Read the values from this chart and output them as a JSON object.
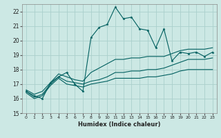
{
  "xlabel": "Humidex (Indice chaleur)",
  "bg_color": "#cce8e4",
  "grid_color": "#aacfcc",
  "line_color": "#005f5f",
  "x_humidex": [
    0,
    1,
    2,
    3,
    4,
    5,
    6,
    7,
    8,
    9,
    10,
    11,
    12,
    13,
    14,
    15,
    16,
    17,
    18,
    19,
    20,
    21,
    22,
    23
  ],
  "series1": [
    16.5,
    16.2,
    16.0,
    17.1,
    17.5,
    17.8,
    17.0,
    16.5,
    20.2,
    20.9,
    21.1,
    22.3,
    21.5,
    21.6,
    20.8,
    20.7,
    19.5,
    20.8,
    18.6,
    19.2,
    19.1,
    19.2,
    18.9,
    19.2
  ],
  "series2": [
    16.6,
    16.3,
    16.5,
    17.1,
    17.7,
    17.5,
    17.3,
    17.2,
    17.8,
    18.1,
    18.4,
    18.7,
    18.7,
    18.8,
    18.8,
    18.9,
    18.9,
    18.9,
    19.1,
    19.3,
    19.4,
    19.4,
    19.4,
    19.5
  ],
  "series3": [
    16.5,
    16.1,
    16.3,
    17.0,
    17.5,
    17.2,
    17.1,
    17.0,
    17.2,
    17.3,
    17.5,
    17.8,
    17.8,
    17.9,
    17.9,
    18.0,
    18.0,
    18.1,
    18.3,
    18.5,
    18.7,
    18.7,
    18.7,
    18.8
  ],
  "series4": [
    16.4,
    16.0,
    16.2,
    16.9,
    17.4,
    17.0,
    16.9,
    16.8,
    17.0,
    17.1,
    17.2,
    17.4,
    17.4,
    17.4,
    17.4,
    17.5,
    17.5,
    17.6,
    17.7,
    17.9,
    18.0,
    18.0,
    18.0,
    18.0
  ],
  "ylim": [
    15,
    22.5
  ],
  "xlim": [
    -0.5,
    23.5
  ],
  "yticks": [
    15,
    16,
    17,
    18,
    19,
    20,
    21,
    22
  ],
  "xticks": [
    0,
    1,
    2,
    3,
    4,
    5,
    6,
    7,
    8,
    9,
    10,
    11,
    12,
    13,
    14,
    15,
    16,
    17,
    18,
    19,
    20,
    21,
    22,
    23
  ]
}
